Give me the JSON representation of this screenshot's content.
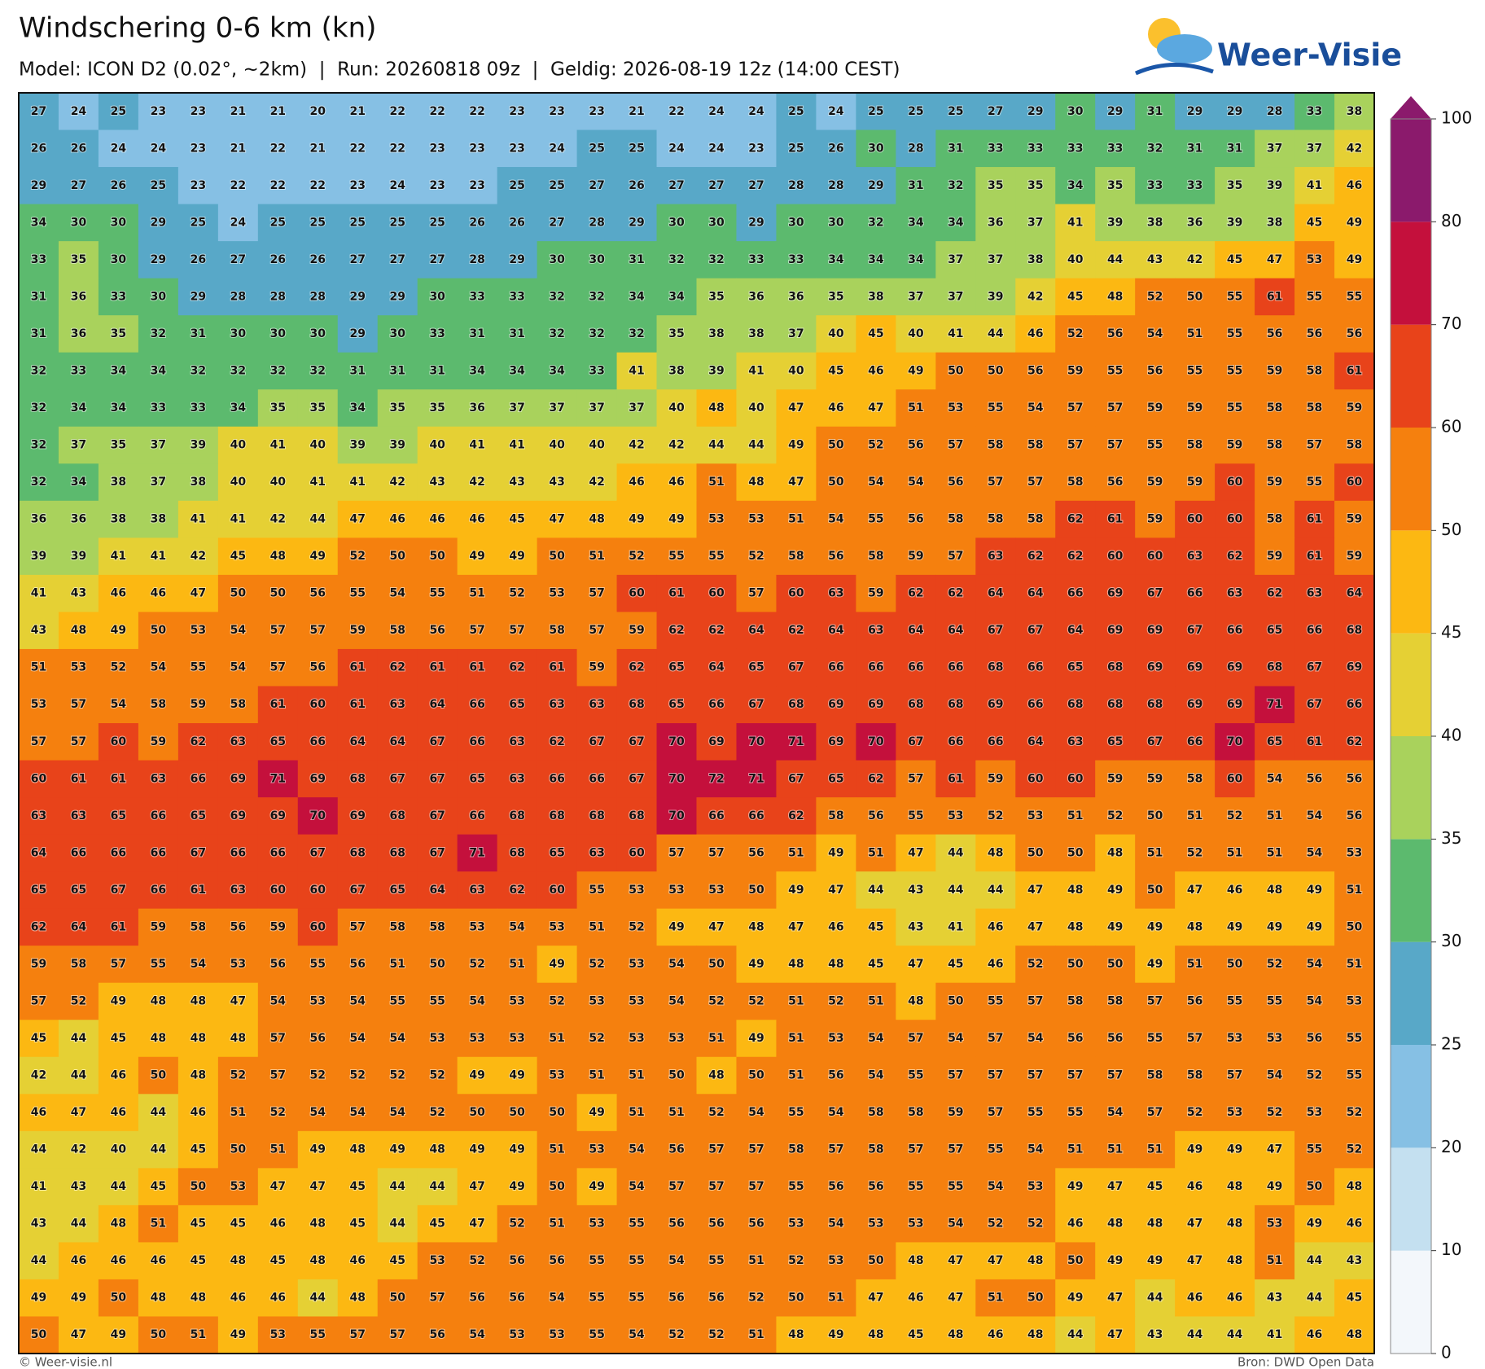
{
  "header": {
    "title": "Windschering 0-6 km (kn)",
    "subtitle": "Model: ICON D2 (0.02°, ~2km)  |  Run: 20260818 09z  |  Geldig: 2026-08-19 12z (14:00 CEST)"
  },
  "logo": "Weer-Visie",
  "grid": {
    "rows": [
      [
        27,
        24,
        25,
        23,
        23,
        21,
        21,
        20,
        21,
        22,
        22,
        22,
        23,
        23,
        23,
        21,
        22,
        24,
        24,
        25,
        24,
        25,
        25,
        25,
        27,
        29,
        30,
        29,
        31,
        29,
        29,
        28,
        33,
        38
      ],
      [
        26,
        26,
        24,
        24,
        23,
        21,
        22,
        21,
        22,
        22,
        23,
        23,
        23,
        24,
        25,
        25,
        24,
        24,
        23,
        25,
        26,
        30,
        28,
        31,
        33,
        33,
        33,
        33,
        32,
        31,
        31,
        37,
        37,
        42
      ],
      [
        29,
        27,
        26,
        25,
        23,
        22,
        22,
        22,
        23,
        24,
        23,
        23,
        25,
        25,
        27,
        26,
        27,
        27,
        27,
        28,
        28,
        29,
        31,
        32,
        35,
        35,
        34,
        35,
        33,
        33,
        35,
        39,
        41,
        46
      ],
      [
        34,
        30,
        30,
        29,
        25,
        24,
        25,
        25,
        25,
        25,
        25,
        26,
        26,
        27,
        28,
        29,
        30,
        30,
        29,
        30,
        30,
        32,
        34,
        34,
        36,
        37,
        41,
        39,
        38,
        36,
        39,
        38,
        45,
        49
      ],
      [
        33,
        35,
        30,
        29,
        26,
        27,
        26,
        26,
        27,
        27,
        27,
        28,
        29,
        30,
        30,
        31,
        32,
        32,
        33,
        33,
        34,
        34,
        34,
        37,
        37,
        38,
        40,
        44,
        43,
        42,
        45,
        47,
        53,
        49
      ],
      [
        31,
        36,
        33,
        30,
        29,
        28,
        28,
        28,
        29,
        29,
        30,
        33,
        33,
        32,
        32,
        34,
        34,
        35,
        36,
        36,
        35,
        38,
        37,
        37,
        39,
        42,
        45,
        48,
        52,
        50,
        55,
        61,
        55,
        55
      ],
      [
        31,
        36,
        35,
        32,
        31,
        30,
        30,
        30,
        29,
        30,
        33,
        31,
        31,
        32,
        32,
        32,
        35,
        38,
        38,
        37,
        40,
        45,
        40,
        41,
        44,
        46,
        52,
        56,
        54,
        51,
        55,
        56,
        56,
        56
      ],
      [
        32,
        33,
        34,
        34,
        32,
        32,
        32,
        32,
        31,
        31,
        31,
        34,
        34,
        34,
        33,
        41,
        38,
        39,
        41,
        40,
        45,
        46,
        49,
        50,
        50,
        56,
        59,
        55,
        56,
        55,
        55,
        59,
        58,
        61
      ],
      [
        32,
        34,
        34,
        33,
        33,
        34,
        35,
        35,
        34,
        35,
        35,
        36,
        37,
        37,
        37,
        37,
        40,
        48,
        40,
        47,
        46,
        47,
        51,
        53,
        55,
        54,
        57,
        57,
        59,
        59,
        55,
        58,
        58,
        59
      ],
      [
        32,
        37,
        35,
        37,
        39,
        40,
        41,
        40,
        39,
        39,
        40,
        41,
        41,
        40,
        40,
        42,
        42,
        44,
        44,
        49,
        50,
        52,
        56,
        57,
        58,
        58,
        57,
        57,
        55,
        58,
        59,
        58,
        57,
        58
      ],
      [
        32,
        34,
        38,
        37,
        38,
        40,
        40,
        41,
        41,
        42,
        43,
        42,
        43,
        43,
        42,
        46,
        46,
        51,
        48,
        47,
        50,
        54,
        54,
        56,
        57,
        57,
        58,
        56,
        59,
        59,
        60,
        59,
        55,
        60
      ],
      [
        36,
        36,
        38,
        38,
        41,
        41,
        42,
        44,
        47,
        46,
        46,
        46,
        45,
        47,
        48,
        49,
        49,
        53,
        53,
        51,
        54,
        55,
        56,
        58,
        58,
        58,
        62,
        61,
        59,
        60,
        60,
        58,
        61,
        59
      ],
      [
        39,
        39,
        41,
        41,
        42,
        45,
        48,
        49,
        52,
        50,
        50,
        49,
        49,
        50,
        51,
        52,
        55,
        55,
        52,
        58,
        56,
        58,
        59,
        57,
        63,
        62,
        62,
        60,
        60,
        63,
        62,
        59,
        61,
        59
      ],
      [
        41,
        43,
        46,
        46,
        47,
        50,
        50,
        56,
        55,
        54,
        55,
        51,
        52,
        53,
        57,
        60,
        61,
        60,
        57,
        60,
        63,
        59,
        62,
        62,
        64,
        64,
        66,
        69,
        67,
        66,
        63,
        62,
        63,
        64
      ],
      [
        43,
        48,
        49,
        50,
        53,
        54,
        57,
        57,
        59,
        58,
        56,
        57,
        57,
        58,
        57,
        59,
        62,
        62,
        64,
        62,
        64,
        63,
        64,
        64,
        67,
        67,
        64,
        69,
        69,
        67,
        66,
        65,
        66,
        68
      ],
      [
        51,
        53,
        52,
        54,
        55,
        54,
        57,
        56,
        61,
        62,
        61,
        61,
        62,
        61,
        59,
        62,
        65,
        64,
        65,
        67,
        66,
        66,
        66,
        66,
        68,
        66,
        65,
        68,
        69,
        69,
        69,
        68,
        67,
        69
      ],
      [
        53,
        57,
        54,
        58,
        59,
        58,
        61,
        60,
        61,
        63,
        64,
        66,
        65,
        63,
        63,
        68,
        65,
        66,
        67,
        68,
        69,
        69,
        68,
        68,
        69,
        66,
        68,
        68,
        68,
        69,
        69,
        71,
        67,
        66
      ],
      [
        57,
        57,
        60,
        59,
        62,
        63,
        65,
        66,
        64,
        64,
        67,
        66,
        63,
        62,
        67,
        67,
        70,
        69,
        70,
        71,
        69,
        70,
        67,
        66,
        66,
        64,
        63,
        65,
        67,
        66,
        70,
        65,
        61,
        62
      ],
      [
        60,
        61,
        61,
        63,
        66,
        69,
        71,
        69,
        68,
        67,
        67,
        65,
        63,
        66,
        66,
        67,
        70,
        72,
        71,
        67,
        65,
        62,
        57,
        61,
        59,
        60,
        60,
        59,
        59,
        58,
        60,
        54,
        56,
        56
      ],
      [
        63,
        63,
        65,
        66,
        65,
        69,
        69,
        70,
        69,
        68,
        67,
        66,
        68,
        68,
        68,
        68,
        70,
        66,
        66,
        62,
        58,
        56,
        55,
        53,
        52,
        53,
        51,
        52,
        50,
        51,
        52,
        51,
        54,
        56
      ],
      [
        64,
        66,
        66,
        66,
        67,
        66,
        66,
        67,
        68,
        68,
        67,
        71,
        68,
        65,
        63,
        60,
        57,
        57,
        56,
        51,
        49,
        51,
        47,
        44,
        48,
        50,
        50,
        48,
        51,
        52,
        51,
        51,
        54,
        53
      ],
      [
        65,
        65,
        67,
        66,
        61,
        63,
        60,
        60,
        67,
        65,
        64,
        63,
        62,
        60,
        55,
        53,
        53,
        53,
        50,
        49,
        47,
        44,
        43,
        44,
        44,
        47,
        48,
        49,
        50,
        47,
        46,
        48,
        49,
        51
      ],
      [
        62,
        64,
        61,
        59,
        58,
        56,
        59,
        60,
        57,
        58,
        58,
        53,
        54,
        53,
        51,
        52,
        49,
        47,
        48,
        47,
        46,
        45,
        43,
        41,
        46,
        47,
        48,
        49,
        49,
        48,
        49,
        49,
        49,
        50
      ],
      [
        59,
        58,
        57,
        55,
        54,
        53,
        56,
        55,
        56,
        51,
        50,
        52,
        51,
        49,
        52,
        53,
        54,
        50,
        49,
        48,
        48,
        45,
        47,
        45,
        46,
        52,
        50,
        50,
        49,
        51,
        50,
        52,
        54,
        51
      ],
      [
        57,
        52,
        49,
        48,
        48,
        47,
        54,
        53,
        54,
        55,
        55,
        54,
        53,
        52,
        53,
        53,
        54,
        52,
        52,
        51,
        52,
        51,
        48,
        50,
        55,
        57,
        58,
        58,
        57,
        56,
        55,
        55,
        54,
        53
      ],
      [
        45,
        44,
        45,
        48,
        48,
        48,
        57,
        56,
        54,
        54,
        53,
        53,
        53,
        51,
        52,
        53,
        53,
        51,
        49,
        51,
        53,
        54,
        57,
        54,
        57,
        54,
        56,
        56,
        55,
        57,
        53,
        53,
        56,
        55
      ],
      [
        42,
        44,
        46,
        50,
        48,
        52,
        57,
        52,
        52,
        52,
        52,
        49,
        49,
        53,
        51,
        51,
        50,
        48,
        50,
        51,
        56,
        54,
        55,
        57,
        57,
        57,
        57,
        57,
        58,
        58,
        57,
        54,
        52,
        55
      ],
      [
        46,
        47,
        46,
        44,
        46,
        51,
        52,
        54,
        54,
        54,
        52,
        50,
        50,
        50,
        49,
        51,
        51,
        52,
        54,
        55,
        54,
        58,
        58,
        59,
        57,
        55,
        55,
        54,
        57,
        52,
        53,
        52,
        53,
        52
      ],
      [
        44,
        42,
        40,
        44,
        45,
        50,
        51,
        49,
        48,
        49,
        48,
        49,
        49,
        51,
        53,
        54,
        56,
        57,
        57,
        58,
        57,
        58,
        57,
        57,
        55,
        54,
        51,
        51,
        51,
        49,
        49,
        47,
        55,
        52
      ],
      [
        41,
        43,
        44,
        45,
        50,
        53,
        47,
        47,
        45,
        44,
        44,
        47,
        49,
        50,
        49,
        54,
        57,
        57,
        57,
        55,
        56,
        56,
        55,
        55,
        54,
        53,
        49,
        47,
        45,
        46,
        48,
        49,
        50,
        48
      ],
      [
        43,
        44,
        48,
        51,
        45,
        45,
        46,
        48,
        45,
        44,
        45,
        47,
        52,
        51,
        53,
        55,
        56,
        56,
        56,
        53,
        54,
        53,
        53,
        54,
        52,
        52,
        46,
        48,
        48,
        47,
        48,
        53,
        49,
        46
      ],
      [
        44,
        46,
        46,
        46,
        45,
        48,
        45,
        48,
        46,
        45,
        53,
        52,
        56,
        56,
        55,
        55,
        54,
        55,
        51,
        52,
        53,
        50,
        48,
        47,
        47,
        48,
        50,
        49,
        49,
        47,
        48,
        51,
        44,
        43
      ],
      [
        49,
        49,
        50,
        48,
        48,
        46,
        46,
        44,
        48,
        50,
        57,
        56,
        56,
        54,
        55,
        55,
        56,
        56,
        52,
        50,
        51,
        47,
        46,
        47,
        51,
        50,
        49,
        47,
        44,
        46,
        46,
        43,
        44,
        45
      ],
      [
        50,
        47,
        49,
        50,
        51,
        49,
        53,
        55,
        57,
        57,
        56,
        54,
        53,
        53,
        55,
        54,
        52,
        52,
        51,
        48,
        49,
        48,
        45,
        48,
        46,
        48,
        44,
        47,
        43,
        44,
        44,
        41,
        46,
        48
      ]
    ]
  },
  "colorbar": {
    "ticks": [
      0,
      10,
      20,
      25,
      30,
      35,
      40,
      45,
      50,
      60,
      70,
      80,
      100
    ],
    "colors": [
      "#f3f7fb",
      "#c4e0f0",
      "#86c0e4",
      "#58a8c8",
      "#5cba6e",
      "#a9d25c",
      "#e5d034",
      "#fcb812",
      "#f5800e",
      "#e8431a",
      "#c4103c",
      "#8b1a6c"
    ]
  },
  "footer": {
    "left": "© Weer-visie.nl",
    "right": "Bron: DWD Open Data"
  }
}
